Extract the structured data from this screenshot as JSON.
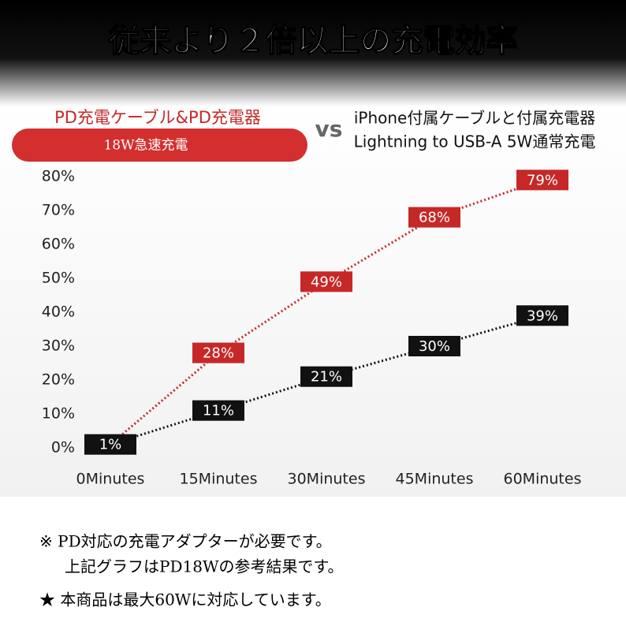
{
  "chart_data": {
    "type": "line",
    "title": "従来より２倍以上の充電効率",
    "legend_separator": "vs",
    "categories": [
      "0Minutes",
      "15Minutes",
      "30Minutes",
      "45Minutes",
      "60Minutes"
    ],
    "series": [
      {
        "name": "PD充電ケーブル&PD充電器",
        "legend_note": "18W急速充電",
        "color": "#c62828",
        "values": [
          1,
          28,
          49,
          68,
          79
        ],
        "value_labels": [
          null,
          "28%",
          "49%",
          "68%",
          "79%"
        ]
      },
      {
        "name": "iPhone付属ケーブルと付属充電器",
        "legend_note": "Lightning to USB-A 5W通常充電",
        "color": "#111111",
        "values": [
          1,
          11,
          21,
          30,
          39
        ],
        "value_labels": [
          "1%",
          "11%",
          "21%",
          "30%",
          "39%"
        ]
      }
    ],
    "ylim": [
      0,
      80
    ],
    "yticks": [
      {
        "value": 0,
        "label": "0%"
      },
      {
        "value": 10,
        "label": "10%"
      },
      {
        "value": 20,
        "label": "20%"
      },
      {
        "value": 30,
        "label": "30%"
      },
      {
        "value": 40,
        "label": "40%"
      },
      {
        "value": 50,
        "label": "50%"
      },
      {
        "value": 60,
        "label": "60%"
      },
      {
        "value": 70,
        "label": "70%"
      },
      {
        "value": 80,
        "label": "80%"
      }
    ],
    "notes": [
      "※ PD対応の充電アダプターが必要です。",
      "上記グラフはPD18Wの参考結果です。",
      "★ 本商品は最大60Wに対応しています。"
    ]
  }
}
